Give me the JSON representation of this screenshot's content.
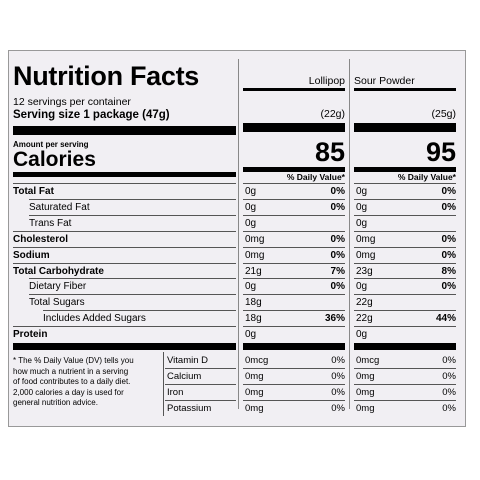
{
  "title": "Nutrition Facts",
  "servings": "12 servings per container",
  "serving_size_label": "Serving size",
  "serving_size_value": "1 package (47g)",
  "amount_per_serving": "Amount per serving",
  "calories_label": "Calories",
  "dv_header": "% Daily Value*",
  "columns": [
    {
      "name": "Lollipop",
      "size": "(22g)",
      "calories": "85"
    },
    {
      "name": "Sour Powder",
      "size": "(25g)",
      "calories": "95"
    }
  ],
  "rows": [
    {
      "label": "Total Fat",
      "bold": true,
      "indent": 0,
      "c1": {
        "amt": "0g",
        "dv": "0%"
      },
      "c2": {
        "amt": "0g",
        "dv": "0%"
      }
    },
    {
      "label": "Saturated Fat",
      "bold": false,
      "indent": 1,
      "c1": {
        "amt": "0g",
        "dv": "0%"
      },
      "c2": {
        "amt": "0g",
        "dv": "0%"
      }
    },
    {
      "label": "Trans Fat",
      "bold": false,
      "indent": 1,
      "c1": {
        "amt": "0g",
        "dv": ""
      },
      "c2": {
        "amt": "0g",
        "dv": ""
      }
    },
    {
      "label": "Cholesterol",
      "bold": true,
      "indent": 0,
      "c1": {
        "amt": "0mg",
        "dv": "0%"
      },
      "c2": {
        "amt": "0mg",
        "dv": "0%"
      }
    },
    {
      "label": "Sodium",
      "bold": true,
      "indent": 0,
      "c1": {
        "amt": "0mg",
        "dv": "0%"
      },
      "c2": {
        "amt": "0mg",
        "dv": "0%"
      }
    },
    {
      "label": "Total Carbohydrate",
      "bold": true,
      "indent": 0,
      "c1": {
        "amt": "21g",
        "dv": "7%"
      },
      "c2": {
        "amt": "23g",
        "dv": "8%"
      }
    },
    {
      "label": "Dietary Fiber",
      "bold": false,
      "indent": 1,
      "c1": {
        "amt": "0g",
        "dv": "0%"
      },
      "c2": {
        "amt": "0g",
        "dv": "0%"
      }
    },
    {
      "label": "Total Sugars",
      "bold": false,
      "indent": 1,
      "c1": {
        "amt": "18g",
        "dv": ""
      },
      "c2": {
        "amt": "22g",
        "dv": ""
      }
    },
    {
      "label": "Includes Added Sugars",
      "bold": false,
      "indent": 2,
      "c1": {
        "amt": "18g",
        "dv": "36%"
      },
      "c2": {
        "amt": "22g",
        "dv": "44%"
      }
    },
    {
      "label": "Protein",
      "bold": true,
      "indent": 0,
      "c1": {
        "amt": "0g",
        "dv": ""
      },
      "c2": {
        "amt": "0g",
        "dv": ""
      }
    }
  ],
  "footnote": [
    "* The % Daily Value (DV) tells you",
    "how much a nutrient in a serving",
    "of food contributes to a daily diet.",
    "2,000 calories a day is used for",
    "general nutrition advice."
  ],
  "vitamins": [
    {
      "label": "Vitamin D",
      "c1": {
        "amt": "0mcg",
        "dv": "0%"
      },
      "c2": {
        "amt": "0mcg",
        "dv": "0%"
      }
    },
    {
      "label": "Calcium",
      "c1": {
        "amt": "0mg",
        "dv": "0%"
      },
      "c2": {
        "amt": "0mg",
        "dv": "0%"
      }
    },
    {
      "label": "Iron",
      "c1": {
        "amt": "0mg",
        "dv": "0%"
      },
      "c2": {
        "amt": "0mg",
        "dv": "0%"
      }
    },
    {
      "label": "Potassium",
      "c1": {
        "amt": "0mg",
        "dv": "0%"
      },
      "c2": {
        "amt": "0mg",
        "dv": "0%"
      }
    }
  ]
}
